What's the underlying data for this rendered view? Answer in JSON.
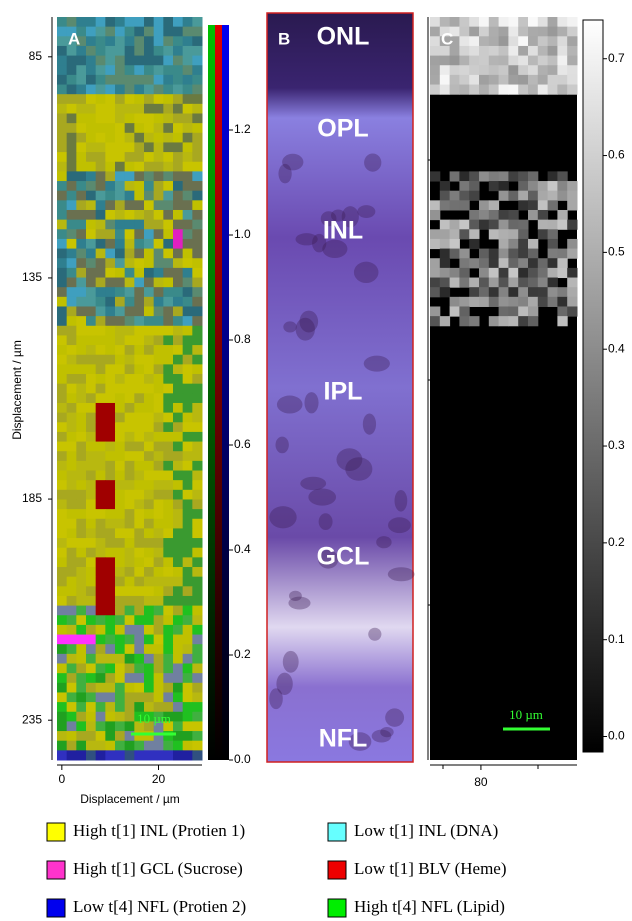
{
  "panel_a": {
    "label": "A",
    "y_axis": {
      "title": "Displacement / µm",
      "lim": [
        76,
        244
      ],
      "ticks": [
        85,
        135,
        185,
        235
      ]
    },
    "x_axis": {
      "title": "Displacement / µm",
      "lim": [
        -1,
        29
      ],
      "ticks": [
        0,
        20
      ]
    },
    "scale_bar": "10 µm",
    "colorbar": {
      "lim": [
        0,
        1.4
      ],
      "ticks": [
        {
          "value": 0,
          "label": "0.0"
        },
        0.2,
        0.4,
        0.6,
        0.8,
        {
          "value": 1,
          "label": "1.0"
        },
        1.2
      ]
    }
  },
  "panel_b": {
    "label": "B",
    "layers": [
      "ONL",
      "OPL",
      "INL",
      "IPL",
      "GCL",
      "NFL"
    ]
  },
  "panel_c": {
    "label": "C",
    "x_axis": {
      "lim": [
        69.4,
        100
      ],
      "ticks": [
        80
      ]
    },
    "scale_bar": "10 µm",
    "colorbar": {
      "lim": [
        -0.016,
        0.74
      ],
      "ticks": [
        {
          "value": 0,
          "label": "0.0"
        },
        0.1,
        0.2,
        0.3,
        0.4,
        0.5,
        0.6,
        0.7
      ]
    }
  },
  "legend": [
    {
      "label": "High t[1] INL (Protien 1)",
      "color": "#ffff00"
    },
    {
      "label": "Low t[1] INL (DNA)",
      "color": "#66ffff"
    },
    {
      "label": "High t[1] GCL (Sucrose)",
      "color": "#ff33cc"
    },
    {
      "label": "Low t[1] BLV (Heme)",
      "color": "#ee0000"
    },
    {
      "label": "Low t[4] NFL (Protien 2)",
      "color": "#0000ee"
    },
    {
      "label": "High t[4] NFL (Lipid)",
      "color": "#00ee00"
    }
  ]
}
